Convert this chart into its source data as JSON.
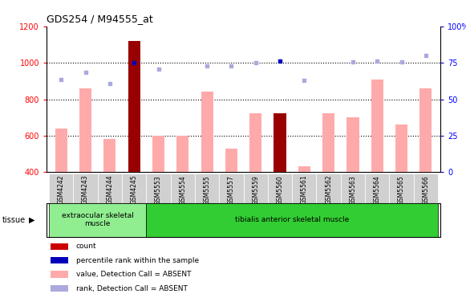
{
  "title": "GDS254 / M94555_at",
  "samples": [
    "GSM4242",
    "GSM4243",
    "GSM4244",
    "GSM4245",
    "GSM5553",
    "GSM5554",
    "GSM5555",
    "GSM5557",
    "GSM5559",
    "GSM5560",
    "GSM5561",
    "GSM5562",
    "GSM5563",
    "GSM5564",
    "GSM5565",
    "GSM5566"
  ],
  "bar_values": [
    640,
    860,
    580,
    1120,
    600,
    600,
    840,
    530,
    725,
    725,
    430,
    725,
    700,
    910,
    660,
    860
  ],
  "bar_colors": [
    "#ffaaaa",
    "#ffaaaa",
    "#ffaaaa",
    "#990000",
    "#ffaaaa",
    "#ffaaaa",
    "#ffaaaa",
    "#ffaaaa",
    "#ffaaaa",
    "#990000",
    "#ffaaaa",
    "#ffaaaa",
    "#ffaaaa",
    "#ffaaaa",
    "#ffaaaa",
    "#ffaaaa"
  ],
  "rank_values": [
    910,
    950,
    885,
    1000,
    965,
    null,
    985,
    985,
    1000,
    1010,
    905,
    null,
    1005,
    1010,
    1005,
    1040
  ],
  "rank_colors": [
    "#aaaadd",
    "#aaaadd",
    "#aaaadd",
    "#0000bb",
    "#aaaadd",
    null,
    "#aaaadd",
    "#aaaadd",
    "#aaaadd",
    "#0000bb",
    "#aaaadd",
    null,
    "#aaaadd",
    "#aaaadd",
    "#aaaadd",
    "#aaaadd"
  ],
  "ylim_left": [
    400,
    1200
  ],
  "ylim_right": [
    0,
    100
  ],
  "yticks_left": [
    400,
    600,
    800,
    1000,
    1200
  ],
  "yticks_right": [
    0,
    25,
    50,
    75,
    100
  ],
  "ytick_labels_right": [
    "0",
    "25",
    "50",
    "75",
    "100%"
  ],
  "tissue_groups": [
    {
      "label": "extraocular skeletal\nmuscle",
      "start": 0,
      "end": 4,
      "color": "#90ee90"
    },
    {
      "label": "tibialis anterior skeletal muscle",
      "start": 4,
      "end": 16,
      "color": "#32cd32"
    }
  ],
  "legend_items": [
    {
      "color": "#cc0000",
      "label": "count"
    },
    {
      "color": "#0000bb",
      "label": "percentile rank within the sample"
    },
    {
      "color": "#ffaaaa",
      "label": "value, Detection Call = ABSENT"
    },
    {
      "color": "#aaaadd",
      "label": "rank, Detection Call = ABSENT"
    }
  ],
  "tissue_label": "tissue",
  "background_color": "#ffffff",
  "grid_lines": [
    600,
    800,
    1000
  ],
  "bar_width": 0.5,
  "n_samples": 16,
  "xlim": [
    -0.6,
    15.6
  ]
}
